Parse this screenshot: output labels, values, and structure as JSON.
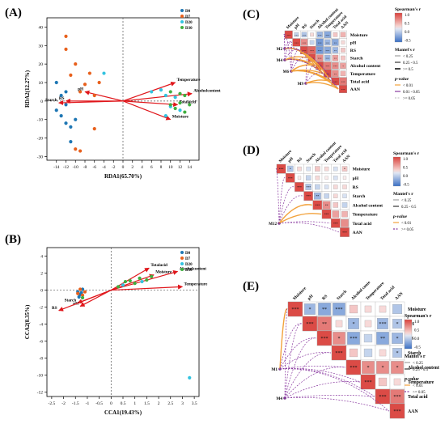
{
  "panels": {
    "A": {
      "label": "(A)"
    },
    "B": {
      "label": "(B)"
    },
    "C": {
      "label": "(C)"
    },
    "D": {
      "label": "(D)"
    },
    "E": {
      "label": "(E)"
    }
  },
  "colors": {
    "D0": "#1f77b4",
    "D7": "#e8601c",
    "D20": "#33c3e0",
    "D30": "#3fae3f",
    "arrow": "#e0161b",
    "pos": "#d9413c",
    "neg": "#3a6fc4",
    "mantel_orange": "#f2a23c",
    "mantel_purple": "#8a3aa0"
  },
  "legend_points": {
    "groups": [
      "D0",
      "D7",
      "D20",
      "D30"
    ]
  },
  "chart_data": [
    {
      "type": "scatter",
      "panel": "A",
      "xlabel": "RDA1(65.70%)",
      "ylabel": "RDA2(12.27%)",
      "xlim": [
        -16,
        16
      ],
      "ylim": [
        -32,
        45
      ],
      "xticks": [
        -14,
        -12,
        -10,
        -8,
        -6,
        -4,
        -2,
        0,
        2,
        4,
        6,
        8,
        10,
        12,
        14
      ],
      "yticks": [
        -30,
        -20,
        -10,
        0,
        10,
        20,
        30,
        40
      ],
      "series": [
        {
          "name": "D0",
          "points": [
            [
              -14,
              10
            ],
            [
              -13,
              3
            ],
            [
              -12,
              -2
            ],
            [
              -13,
              -8
            ],
            [
              -12,
              -12
            ],
            [
              -14,
              -5
            ],
            [
              -11,
              -22
            ],
            [
              -10,
              -10
            ],
            [
              -12,
              5
            ],
            [
              -11,
              -14
            ]
          ]
        },
        {
          "name": "D7",
          "points": [
            [
              -12,
              35
            ],
            [
              -10,
              20
            ],
            [
              -11,
              14
            ],
            [
              -8,
              9
            ],
            [
              -9,
              5
            ],
            [
              -7,
              15
            ],
            [
              -6,
              3
            ],
            [
              -10,
              -26
            ],
            [
              -9,
              -27
            ],
            [
              -6,
              -15
            ],
            [
              -5,
              10
            ],
            [
              -12,
              28
            ]
          ]
        },
        {
          "name": "D20",
          "points": [
            [
              -4,
              15
            ],
            [
              6,
              5
            ],
            [
              9,
              3
            ],
            [
              10,
              -3
            ],
            [
              11,
              2
            ],
            [
              8,
              6
            ],
            [
              12,
              -5
            ],
            [
              9,
              -8
            ]
          ]
        },
        {
          "name": "D30",
          "points": [
            [
              10,
              5
            ],
            [
              12,
              -1
            ],
            [
              13,
              3
            ],
            [
              14,
              -2
            ],
            [
              11,
              -4
            ],
            [
              12,
              4
            ],
            [
              13,
              -6
            ],
            [
              10,
              -2
            ]
          ]
        }
      ],
      "vectors": [
        {
          "name": "Temperature",
          "x": 11,
          "y": 10
        },
        {
          "name": "Alcoholcontent",
          "x": 14.5,
          "y": 4
        },
        {
          "name": "Totalacid",
          "x": 11.5,
          "y": -2
        },
        {
          "name": "Moisture",
          "x": 10,
          "y": -10
        },
        {
          "name": "RS",
          "x": -12,
          "y": 0
        },
        {
          "name": "pH",
          "x": -8,
          "y": 5
        },
        {
          "name": "Starch",
          "x": -13.5,
          "y": -1
        }
      ]
    },
    {
      "type": "scatter",
      "panel": "B",
      "xlabel": "CCA1(19.43%)",
      "ylabel": "CCA2(8.35%)",
      "xlim": [
        -2.7,
        3.7
      ],
      "ylim": [
        -12.5,
        5
      ],
      "xticks": [
        -2.5,
        -2,
        -1.5,
        -1,
        -0.5,
        0,
        0.5,
        1,
        1.5,
        2,
        2.5,
        3,
        3.5
      ],
      "yticks": [
        -12,
        -10,
        -8,
        -6,
        -4,
        -2,
        0,
        2,
        4
      ],
      "series": [
        {
          "name": "D0",
          "points": [
            [
              -1.4,
              -0.2
            ],
            [
              -1.3,
              -0.5
            ],
            [
              -1.2,
              0.1
            ],
            [
              -1.35,
              -0.8
            ],
            [
              -1.25,
              -0.3
            ]
          ]
        },
        {
          "name": "D7",
          "points": [
            [
              -1.3,
              0.1
            ],
            [
              -1.2,
              -0.6
            ],
            [
              -1.4,
              -0.4
            ],
            [
              -1.1,
              -0.2
            ]
          ]
        },
        {
          "name": "D20",
          "points": [
            [
              3.3,
              -10.3
            ],
            [
              0.5,
              0.6
            ],
            [
              1.3,
              1.0
            ]
          ]
        },
        {
          "name": "D30",
          "points": [
            [
              -1.2,
              -0.9
            ],
            [
              0.3,
              0.4
            ],
            [
              0.8,
              1.1
            ],
            [
              1.0,
              0.8
            ],
            [
              1.2,
              1.4
            ],
            [
              1.5,
              1.2
            ],
            [
              0.6,
              1.0
            ],
            [
              1.7,
              1.6
            ]
          ]
        }
      ],
      "vectors": [
        {
          "name": "Totalacid",
          "x": 1.6,
          "y": 2.6
        },
        {
          "name": "Alcoholcontent",
          "x": 2.8,
          "y": 2.2
        },
        {
          "name": "Moisture",
          "x": 1.8,
          "y": 1.8
        },
        {
          "name": "Temperature",
          "x": 3.0,
          "y": 0.4
        },
        {
          "name": "Starch",
          "x": -1.4,
          "y": -1.5
        },
        {
          "name": "pH",
          "x": -1.3,
          "y": -1.9
        },
        {
          "name": "RS",
          "x": -2.2,
          "y": -2.4
        }
      ]
    },
    {
      "type": "heatmap",
      "panel": "C",
      "variables": [
        "Moisture",
        "pH",
        "RS",
        "Starch",
        "Alcohol content",
        "Temperature",
        "Total acid",
        "AAN"
      ],
      "col_labels": [
        "Moisture",
        "pH",
        "RS",
        "Starch",
        "Alcohol content",
        "Temperature",
        "Total acid",
        "AAN"
      ],
      "matrix": [
        [
          0.95,
          -0.3,
          -0.4,
          0.2,
          -0.5,
          -0.6,
          0.3,
          0.4
        ],
        [
          0,
          0.95,
          0.6,
          -0.3,
          -0.7,
          -0.5,
          -0.6,
          0.2
        ],
        [
          0,
          0,
          0.95,
          0.8,
          -0.7,
          -0.6,
          -0.5,
          0.3
        ],
        [
          0,
          0,
          0,
          0.95,
          0.6,
          -0.5,
          0.5,
          0.3
        ],
        [
          0,
          0,
          0,
          0,
          0.95,
          0.7,
          0.6,
          0.5
        ],
        [
          0,
          0,
          0,
          0,
          0,
          0.95,
          0.6,
          0.4
        ],
        [
          0,
          0,
          0,
          0,
          0,
          0,
          0.95,
          0.7
        ],
        [
          0,
          0,
          0,
          0,
          0,
          0,
          0,
          0.95
        ]
      ],
      "stars": [
        [
          "***",
          "***",
          "***",
          "",
          "***",
          "***",
          "",
          ""
        ],
        [
          "",
          "***",
          "***",
          "",
          "***",
          "***",
          "**",
          ""
        ],
        [
          "",
          "",
          "***",
          "***",
          "***",
          "***",
          "**",
          ""
        ],
        [
          "",
          "",
          "",
          "***",
          "***",
          "***",
          "**",
          ""
        ],
        [
          "",
          "",
          "",
          "",
          "***",
          "***",
          "***",
          "*"
        ],
        [
          "",
          "",
          "",
          "",
          "",
          "***",
          "**",
          ""
        ],
        [
          "",
          "",
          "",
          "",
          "",
          "",
          "***",
          "***"
        ],
        [
          "",
          "",
          "",
          "",
          "",
          "",
          "",
          "***"
        ]
      ],
      "mantel_nodes": [
        "M2",
        "M4",
        "M6",
        "M9"
      ],
      "legend": {
        "corr_title": "Spearman's r",
        "corr_ticks": [
          "1.0",
          "0.5",
          "0.0",
          "-0.5"
        ],
        "mantel_title": "Mantel's r",
        "mantel_items": [
          "< 0.25",
          "0.25 - 0.5",
          ">= 0.5"
        ],
        "p_title": "p-value",
        "p_items": [
          "< 0.01",
          "0.01 - 0.05",
          ">= 0.05"
        ]
      }
    },
    {
      "type": "heatmap",
      "panel": "D",
      "variables": [
        "Moisture",
        "pH",
        "RS",
        "Starch",
        "Alcohol content",
        "Temperature",
        "Total acid",
        "AAN"
      ],
      "col_labels": [
        "Moisture",
        "pH",
        "RS",
        "Starch",
        "Alcohol content",
        "Temperature",
        "Total acid",
        "AAN"
      ],
      "matrix": [
        [
          0.95,
          -0.4,
          0.2,
          -0.2,
          0.3,
          0.2,
          -0.2,
          0.3
        ],
        [
          0,
          0.95,
          0.1,
          -0.3,
          0.2,
          0.1,
          -0.2,
          0.1
        ],
        [
          0,
          0,
          0.95,
          -0.4,
          -0.3,
          -0.2,
          0.2,
          0.2
        ],
        [
          0,
          0,
          0,
          0.95,
          -0.5,
          -0.3,
          0.2,
          -0.2
        ],
        [
          0,
          0,
          0,
          0,
          0.95,
          0.6,
          0.3,
          -0.3
        ],
        [
          0,
          0,
          0,
          0,
          0,
          0.95,
          0.5,
          0.4
        ],
        [
          0,
          0,
          0,
          0,
          0,
          0,
          0.95,
          0.6
        ],
        [
          0,
          0,
          0,
          0,
          0,
          0,
          0,
          0.95
        ]
      ],
      "stars": [
        [
          "***",
          "*",
          "",
          "",
          "",
          "",
          "",
          "*"
        ],
        [
          "",
          "***",
          "",
          "",
          "",
          "",
          "",
          ""
        ],
        [
          "",
          "",
          "***",
          "***",
          "",
          "",
          "",
          ""
        ],
        [
          "",
          "",
          "",
          "***",
          "**",
          "",
          "",
          ""
        ],
        [
          "",
          "",
          "",
          "",
          "***",
          "**",
          "",
          ""
        ],
        [
          "",
          "",
          "",
          "",
          "",
          "***",
          "",
          ""
        ],
        [
          "",
          "",
          "",
          "",
          "",
          "",
          "***",
          ""
        ],
        [
          "",
          "",
          "",
          "",
          "",
          "",
          "",
          "***"
        ]
      ],
      "mantel_nodes": [
        "M12"
      ],
      "legend": {
        "corr_title": "Spearman's r",
        "corr_ticks": [
          "1.0",
          "0.5",
          "0.0",
          "-0.5"
        ],
        "mantel_title": "Mantel's r",
        "mantel_items": [
          "< 0.25",
          "0.25 - 0.5"
        ],
        "p_title": "p-value",
        "p_items": [
          "< 0.01",
          ">= 0.05"
        ]
      }
    },
    {
      "type": "heatmap",
      "panel": "E",
      "variables": [
        "Moisture",
        "pH",
        "RS",
        "Starch",
        "Alcohol content",
        "Temperature",
        "Total acid",
        "AAN"
      ],
      "col_labels": [
        "Moisture",
        "pH",
        "RS",
        "Starch",
        "Alcohol conte",
        "Temperature",
        "Total acid",
        "AAN"
      ],
      "matrix": [
        [
          0.95,
          -0.5,
          -0.6,
          -0.6,
          0.3,
          0.2,
          0.2,
          -0.4
        ],
        [
          0,
          0.95,
          0.7,
          0.2,
          -0.5,
          0.2,
          -0.5,
          -0.4
        ],
        [
          0,
          0,
          0.95,
          0.6,
          -0.6,
          -0.3,
          -0.6,
          -0.5
        ],
        [
          0,
          0,
          0,
          0.95,
          0.3,
          -0.3,
          0.2,
          -0.4
        ],
        [
          0,
          0,
          0,
          0,
          0.95,
          0.6,
          0.6,
          0.6
        ],
        [
          0,
          0,
          0,
          0,
          0,
          0.95,
          0.3,
          0.2
        ],
        [
          0,
          0,
          0,
          0,
          0,
          0,
          0.95,
          0.7
        ],
        [
          0,
          0,
          0,
          0,
          0,
          0,
          0,
          0.95
        ]
      ],
      "stars": [
        [
          "***",
          "*",
          "**",
          "***",
          "",
          "",
          "",
          ""
        ],
        [
          "",
          "***",
          "**",
          "",
          "*",
          "",
          "***",
          "*"
        ],
        [
          "",
          "",
          "***",
          "*",
          "***",
          "",
          "**",
          "*"
        ],
        [
          "",
          "",
          "",
          "***",
          "",
          "",
          "",
          "*"
        ],
        [
          "",
          "",
          "",
          "",
          "***",
          "*",
          "*",
          "*"
        ],
        [
          "",
          "",
          "",
          "",
          "",
          "***",
          "",
          ""
        ],
        [
          "",
          "",
          "",
          "",
          "",
          "",
          "***",
          "***"
        ],
        [
          "",
          "",
          "",
          "",
          "",
          "",
          "",
          "***"
        ]
      ],
      "mantel_nodes": [
        "M1",
        "M4"
      ],
      "legend": {
        "corr_title": "Spearman's r",
        "corr_ticks": [
          "1.0",
          "0.5",
          "0.0",
          "-0.5"
        ],
        "mantel_title": "Mantel's r",
        "mantel_items": [
          "< 0.25",
          "0.25 - 0.5"
        ],
        "p_title": "p-value",
        "p_items": [
          "< 0.01",
          ">= 0.05"
        ]
      }
    }
  ]
}
